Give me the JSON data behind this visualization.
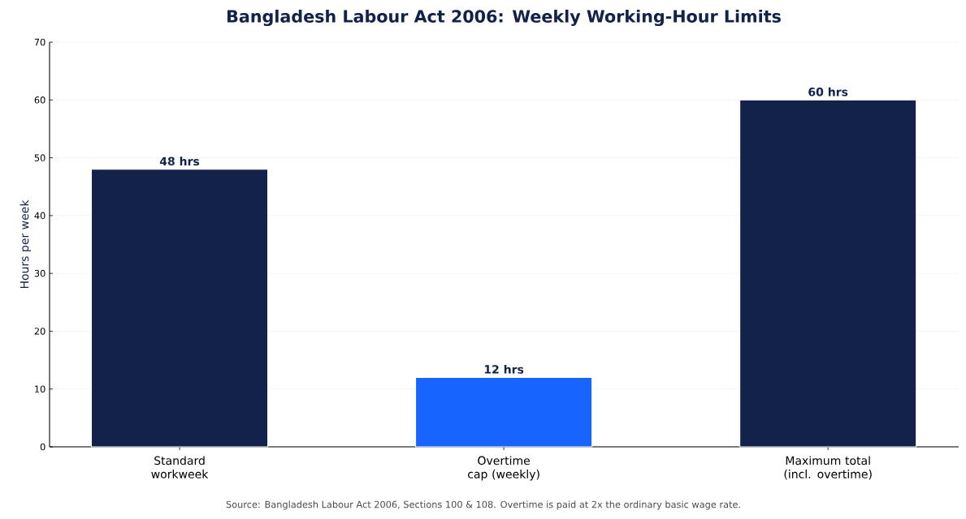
{
  "chart_data": {
    "type": "bar",
    "title": "Bangladesh Labour Act 2006: Weekly Working-Hour Limits",
    "ylabel": "Hours per week",
    "categories": [
      "Standard workweek",
      "Overtime cap (weekly)",
      "Maximum total (incl. overtime)"
    ],
    "values": [
      48,
      12,
      60
    ],
    "colors": [
      "#13224b",
      "#1764ff",
      "#13224b"
    ],
    "value_labels": [
      "48 hrs",
      "12 hrs",
      "60 hrs"
    ],
    "ylim": [
      0,
      70
    ],
    "yticks": [
      0,
      10,
      20,
      30,
      40,
      50,
      60,
      70
    ],
    "grid": "y",
    "annotations": [
      "Source: Bangladesh Labour Act 2006, Sections 100 & 108. Overtime is paid at 2x the ordinary basic wage rate."
    ]
  }
}
